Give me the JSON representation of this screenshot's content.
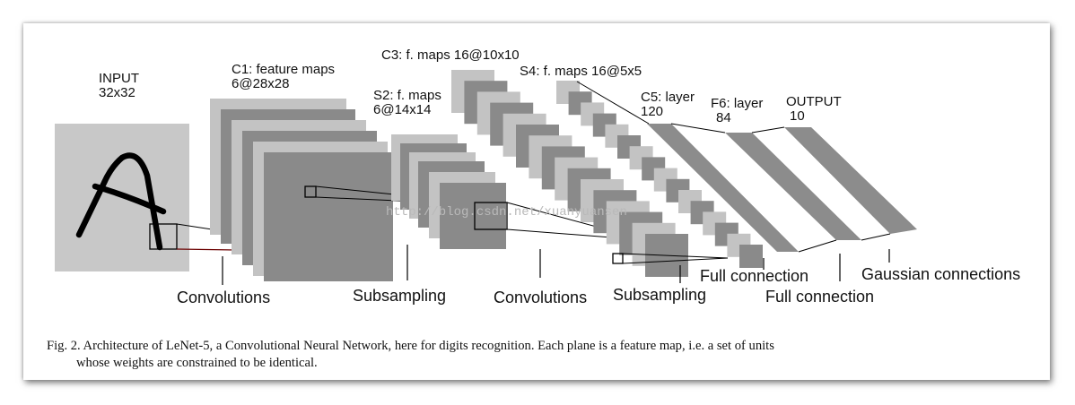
{
  "labels": {
    "input_title": "INPUT",
    "input_size": "32x32",
    "c1_title": "C1: feature maps",
    "c1_size": "6@28x28",
    "s2_title": "S2: f. maps",
    "s2_size": "6@14x14",
    "c3_title": "C3: f. maps 16@10x10",
    "s4_title": "S4: f. maps 16@5x5",
    "c5_title": "C5: layer",
    "c5_size": "120",
    "f6_title": "F6: layer",
    "f6_size": "84",
    "output_title": "OUTPUT",
    "output_size": "10"
  },
  "operations": {
    "conv1": "Convolutions",
    "sub1": "Subsampling",
    "conv2": "Convolutions",
    "sub2": "Subsampling",
    "full1": "Full connection",
    "full2": "Full connection",
    "gauss": "Gaussian connections"
  },
  "watermark": "http://blog.csdn.net/xuanyuansen",
  "caption": {
    "line1": "Fig. 2.   Architecture of LeNet-5, a Convolutional Neural Network, here for digits recognition. Each plane is a feature map, i.e. a set of units",
    "line2": "whose weights are constrained to be identical."
  },
  "colors": {
    "input_plane": "#c8c8c8",
    "light_map": "#c3c3c3",
    "dark_map": "#8a8a8a",
    "band": "#8c8c8c",
    "line": "#111111"
  }
}
